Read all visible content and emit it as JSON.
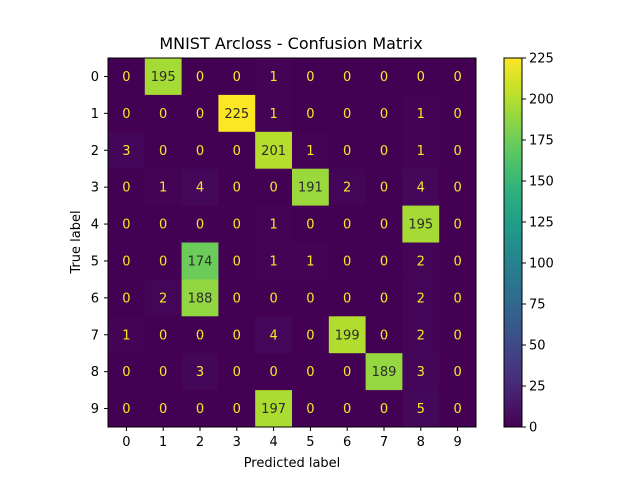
{
  "chart_data": {
    "type": "heatmap",
    "title": "MNIST Arcloss - Confusion Matrix",
    "xlabel": "Predicted label",
    "ylabel": "True label",
    "x_categories": [
      "0",
      "1",
      "2",
      "3",
      "4",
      "5",
      "6",
      "7",
      "8",
      "9"
    ],
    "y_categories": [
      "0",
      "1",
      "2",
      "3",
      "4",
      "5",
      "6",
      "7",
      "8",
      "9"
    ],
    "matrix": [
      [
        0,
        195,
        0,
        0,
        1,
        0,
        0,
        0,
        0,
        0
      ],
      [
        0,
        0,
        0,
        225,
        1,
        0,
        0,
        0,
        1,
        0
      ],
      [
        3,
        0,
        0,
        0,
        201,
        1,
        0,
        0,
        1,
        0
      ],
      [
        0,
        1,
        4,
        0,
        0,
        191,
        2,
        0,
        4,
        0
      ],
      [
        0,
        0,
        0,
        0,
        1,
        0,
        0,
        0,
        195,
        0
      ],
      [
        0,
        0,
        174,
        0,
        1,
        1,
        0,
        0,
        2,
        0
      ],
      [
        0,
        2,
        188,
        0,
        0,
        0,
        0,
        0,
        2,
        0
      ],
      [
        1,
        0,
        0,
        0,
        4,
        0,
        199,
        0,
        2,
        0
      ],
      [
        0,
        0,
        3,
        0,
        0,
        0,
        0,
        189,
        3,
        0
      ],
      [
        0,
        0,
        0,
        0,
        197,
        0,
        0,
        0,
        5,
        0
      ]
    ],
    "vmin": 0,
    "vmax": 225,
    "colormap": "viridis",
    "colorbar_ticks": [
      0,
      25,
      50,
      75,
      100,
      125,
      150,
      175,
      200,
      225
    ],
    "colors": {
      "dark_text": "#2c2c2c",
      "light_text": "#fde725"
    }
  }
}
